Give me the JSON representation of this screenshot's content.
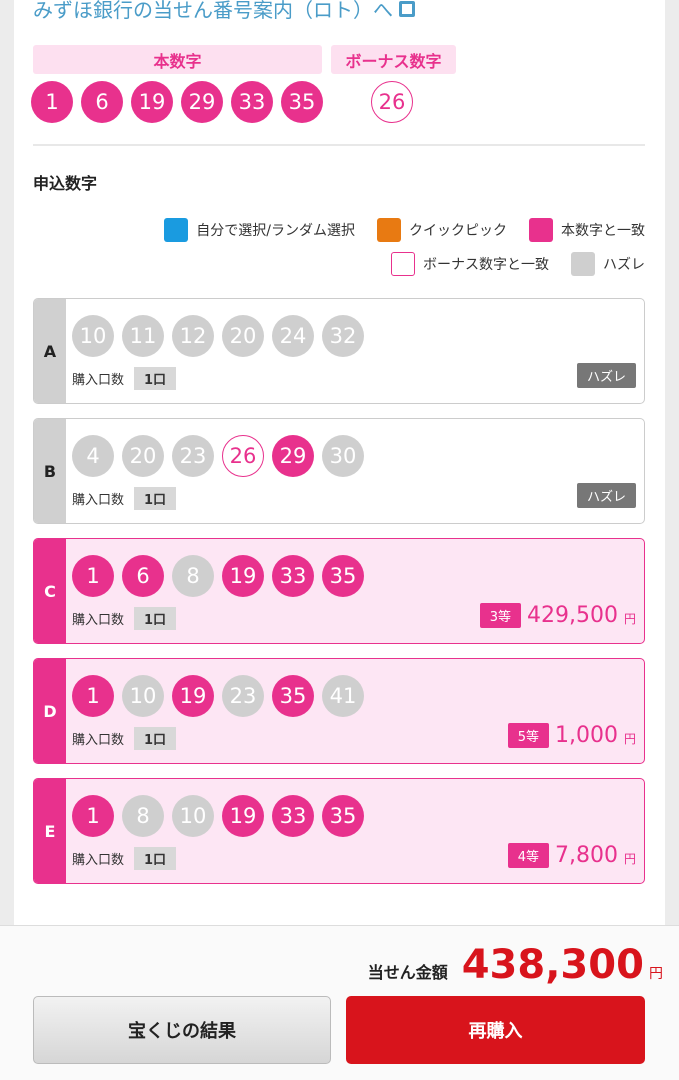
{
  "link": {
    "label": "みずほ銀行の当せん番号案内（ロト）へ",
    "icon": "external-window-icon"
  },
  "winning": {
    "main_label": "本数字",
    "bonus_label": "ボーナス数字",
    "main": [
      "1",
      "6",
      "19",
      "29",
      "33",
      "35"
    ],
    "bonus": "26"
  },
  "section_title": "申込数字",
  "legend": [
    {
      "label": "自分で選択/ランダム選択",
      "color": "#1a9be0"
    },
    {
      "label": "クイックピック",
      "color": "#e87a12"
    },
    {
      "label": "本数字と一致",
      "color": "#e8318d"
    },
    {
      "label": "ボーナス数字と一致",
      "color": "#ffffff"
    },
    {
      "label": "ハズレ",
      "color": "#cfcfcf"
    }
  ],
  "qty_label": "購入口数",
  "yen": "円",
  "rows": [
    {
      "id": "A",
      "won": false,
      "qty": "1口",
      "result": "ハズレ",
      "balls": [
        [
          "10",
          "miss"
        ],
        [
          "11",
          "miss"
        ],
        [
          "12",
          "miss"
        ],
        [
          "20",
          "miss"
        ],
        [
          "24",
          "miss"
        ],
        [
          "32",
          "miss"
        ]
      ]
    },
    {
      "id": "B",
      "won": false,
      "qty": "1口",
      "result": "ハズレ",
      "balls": [
        [
          "4",
          "miss"
        ],
        [
          "20",
          "miss"
        ],
        [
          "23",
          "miss"
        ],
        [
          "26",
          "bonus"
        ],
        [
          "29",
          "hit"
        ],
        [
          "30",
          "miss"
        ]
      ]
    },
    {
      "id": "C",
      "won": true,
      "qty": "1口",
      "rank": "3等",
      "amount": "429,500",
      "balls": [
        [
          "1",
          "hit"
        ],
        [
          "6",
          "hit"
        ],
        [
          "8",
          "miss"
        ],
        [
          "19",
          "hit"
        ],
        [
          "33",
          "hit"
        ],
        [
          "35",
          "hit"
        ]
      ]
    },
    {
      "id": "D",
      "won": true,
      "qty": "1口",
      "rank": "5等",
      "amount": "1,000",
      "balls": [
        [
          "1",
          "hit"
        ],
        [
          "10",
          "miss"
        ],
        [
          "19",
          "hit"
        ],
        [
          "23",
          "miss"
        ],
        [
          "35",
          "hit"
        ],
        [
          "41",
          "miss"
        ]
      ]
    },
    {
      "id": "E",
      "won": true,
      "qty": "1口",
      "rank": "4等",
      "amount": "7,800",
      "balls": [
        [
          "1",
          "hit"
        ],
        [
          "8",
          "miss"
        ],
        [
          "10",
          "miss"
        ],
        [
          "19",
          "hit"
        ],
        [
          "33",
          "hit"
        ],
        [
          "35",
          "hit"
        ]
      ]
    }
  ],
  "footer": {
    "total_label": "当せん金額",
    "total": "438,300",
    "yen": "円",
    "results_button": "宝くじの結果",
    "rebuy_button": "再購入"
  }
}
